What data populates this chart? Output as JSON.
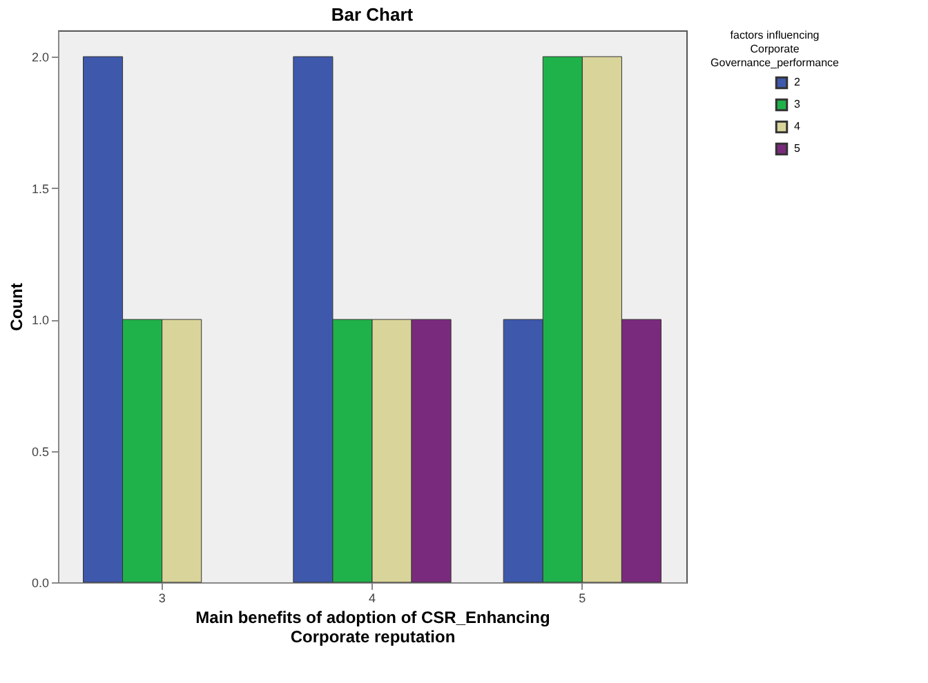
{
  "chart_data": {
    "type": "bar",
    "title": "Bar Chart",
    "xlabel": "Main benefits of adoption of CSR_Enhancing Corporate reputation",
    "ylabel": "Count",
    "legend_title": "factors influencing Corporate Governance_performance",
    "categories": [
      "3",
      "4",
      "5"
    ],
    "series": [
      {
        "name": "2",
        "color": "#3e58ac",
        "values": [
          2,
          2,
          1
        ]
      },
      {
        "name": "3",
        "color": "#1fb24a",
        "values": [
          1,
          1,
          2
        ]
      },
      {
        "name": "4",
        "color": "#d9d49a",
        "values": [
          1,
          1,
          2
        ]
      },
      {
        "name": "5",
        "color": "#7a2a7c",
        "values": [
          null,
          1,
          1
        ]
      }
    ],
    "ylim": [
      0,
      2.1
    ],
    "yticks": [
      {
        "value": 0,
        "label": "0.0"
      },
      {
        "value": 0.5,
        "label": "0.5"
      },
      {
        "value": 1,
        "label": "1.0"
      },
      {
        "value": 1.5,
        "label": "1.5"
      },
      {
        "value": 2,
        "label": "2.0"
      }
    ],
    "grid": false,
    "legend": "top right"
  }
}
